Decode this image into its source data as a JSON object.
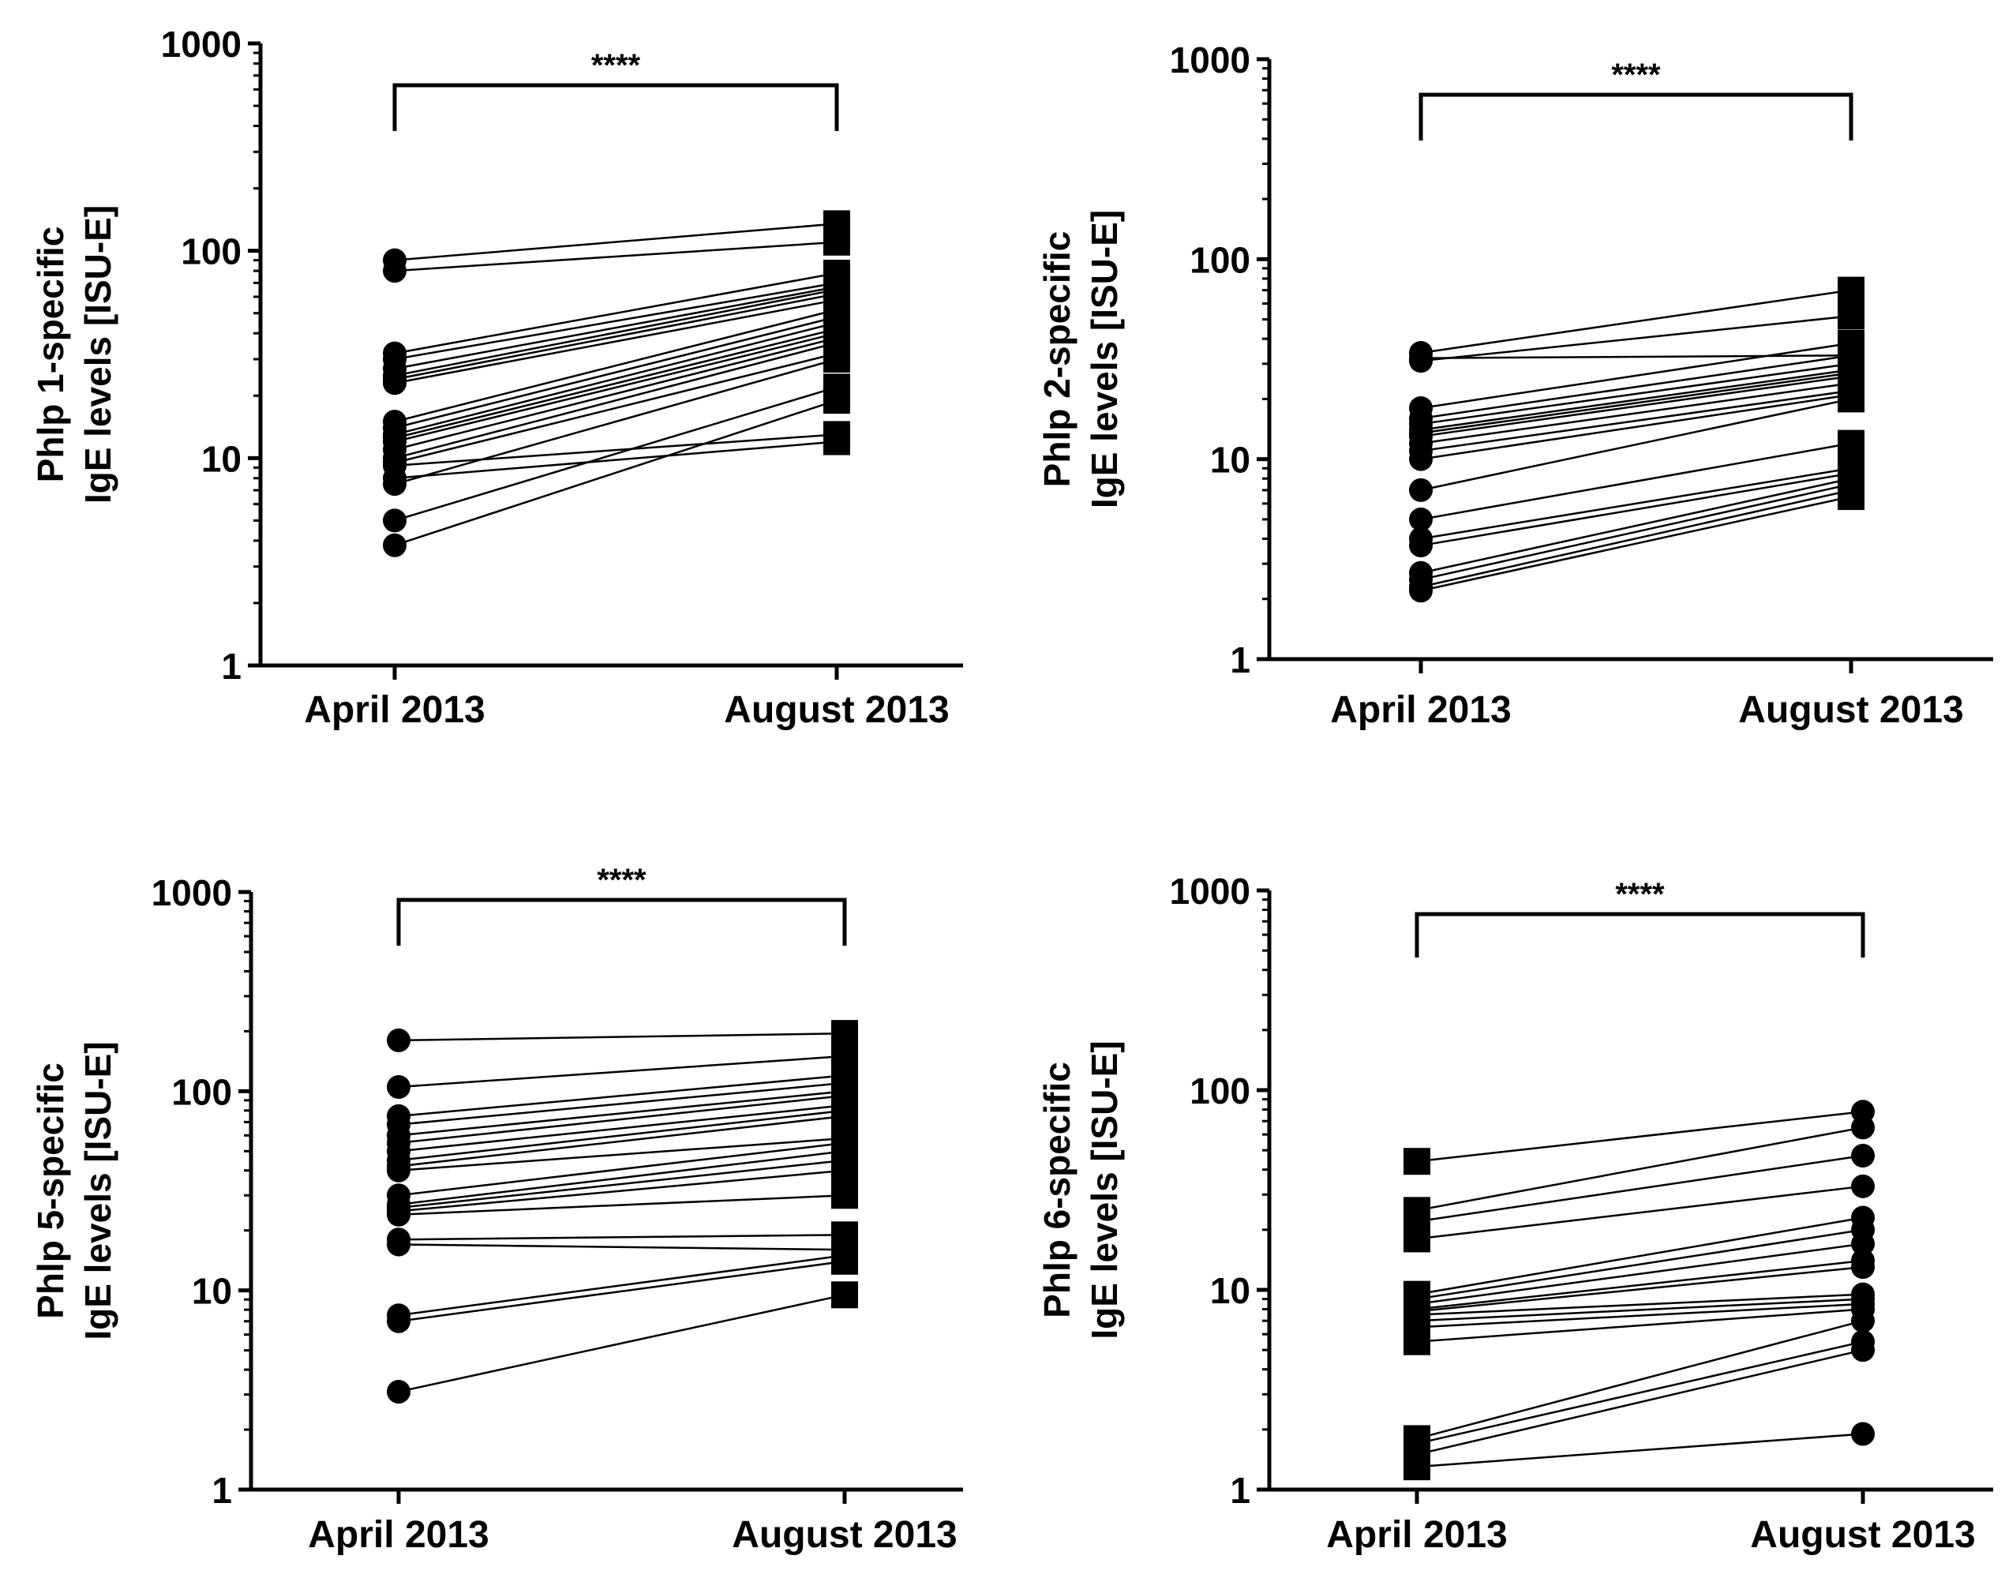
{
  "chart_data": [
    {
      "type": "line",
      "ylabel_line1": "Phlp 1-specific",
      "ylabel_line2": "IgE levels [ISU-E]",
      "categories": [
        "April 2013",
        "August 2013"
      ],
      "yscale": "log",
      "ylim": [
        1,
        1000
      ],
      "yticks": [
        "1",
        "10",
        "100",
        "1000"
      ],
      "significance": "****",
      "april_marker": "circle",
      "august_marker": "square",
      "pairs": [
        [
          90,
          135
        ],
        [
          80,
          110
        ],
        [
          32,
          78
        ],
        [
          30,
          70
        ],
        [
          27,
          67
        ],
        [
          25,
          65
        ],
        [
          24,
          62
        ],
        [
          23,
          58
        ],
        [
          15,
          52
        ],
        [
          14,
          48
        ],
        [
          13,
          45
        ],
        [
          12.5,
          42
        ],
        [
          12,
          40
        ],
        [
          11,
          38
        ],
        [
          10,
          36
        ],
        [
          9.5,
          32
        ],
        [
          9.2,
          13
        ],
        [
          8,
          12
        ],
        [
          7.5,
          30
        ],
        [
          5,
          22
        ],
        [
          3.8,
          19
        ]
      ]
    },
    {
      "type": "line",
      "ylabel_line1": "Phlp 2-specific",
      "ylabel_line2": "IgE levels [ISU-E]",
      "categories": [
        "April 2013",
        "August 2013"
      ],
      "yscale": "log",
      "ylim": [
        1,
        1000
      ],
      "yticks": [
        "1",
        "10",
        "100",
        "1000"
      ],
      "significance": "****",
      "april_marker": "circle",
      "august_marker": "square",
      "pairs": [
        [
          34,
          70
        ],
        [
          32,
          33
        ],
        [
          31,
          52
        ],
        [
          18,
          38
        ],
        [
          16,
          33
        ],
        [
          15,
          30
        ],
        [
          14,
          28
        ],
        [
          13.5,
          27
        ],
        [
          13,
          26
        ],
        [
          12,
          24
        ],
        [
          11,
          22
        ],
        [
          10,
          21
        ],
        [
          7,
          20
        ],
        [
          5,
          12
        ],
        [
          4,
          9
        ],
        [
          3.7,
          8.5
        ],
        [
          2.7,
          8
        ],
        [
          2.5,
          7.5
        ],
        [
          2.3,
          7
        ],
        [
          2.2,
          6.5
        ]
      ]
    },
    {
      "type": "line",
      "ylabel_line1": "Phlp 5-specific",
      "ylabel_line2": "IgE levels [ISU-E]",
      "categories": [
        "April 2013",
        "August 2013"
      ],
      "yscale": "log",
      "ylim": [
        1,
        1000
      ],
      "yticks": [
        "1",
        "10",
        "100",
        "1000"
      ],
      "significance": "****",
      "april_marker": "circle",
      "august_marker": "square",
      "pairs": [
        [
          180,
          195
        ],
        [
          105,
          150
        ],
        [
          75,
          120
        ],
        [
          68,
          110
        ],
        [
          60,
          100
        ],
        [
          55,
          95
        ],
        [
          50,
          85
        ],
        [
          45,
          80
        ],
        [
          42,
          75
        ],
        [
          40,
          58
        ],
        [
          30,
          55
        ],
        [
          27,
          50
        ],
        [
          26,
          45
        ],
        [
          25,
          40
        ],
        [
          24,
          30
        ],
        [
          18,
          19
        ],
        [
          17,
          16
        ],
        [
          7.5,
          15
        ],
        [
          7,
          14
        ],
        [
          3.1,
          9.5
        ]
      ]
    },
    {
      "type": "line",
      "ylabel_line1": "Phlp 6-specific",
      "ylabel_line2": "IgE levels [ISU-E]",
      "categories": [
        "April 2013",
        "August 2013"
      ],
      "yscale": "log",
      "ylim": [
        1,
        1000
      ],
      "yticks": [
        "1",
        "10",
        "100",
        "1000"
      ],
      "significance": "****",
      "april_marker": "square",
      "august_marker": "circle",
      "pairs": [
        [
          44,
          78
        ],
        [
          25,
          65
        ],
        [
          22,
          47
        ],
        [
          18,
          33
        ],
        [
          9.5,
          23
        ],
        [
          9,
          20
        ],
        [
          8.5,
          17
        ],
        [
          8,
          14
        ],
        [
          7.8,
          13
        ],
        [
          7.5,
          9.5
        ],
        [
          7,
          9
        ],
        [
          6.5,
          8.5
        ],
        [
          5.5,
          8
        ],
        [
          1.8,
          7
        ],
        [
          1.7,
          5.5
        ],
        [
          1.5,
          5
        ],
        [
          1.3,
          1.9
        ]
      ]
    }
  ]
}
